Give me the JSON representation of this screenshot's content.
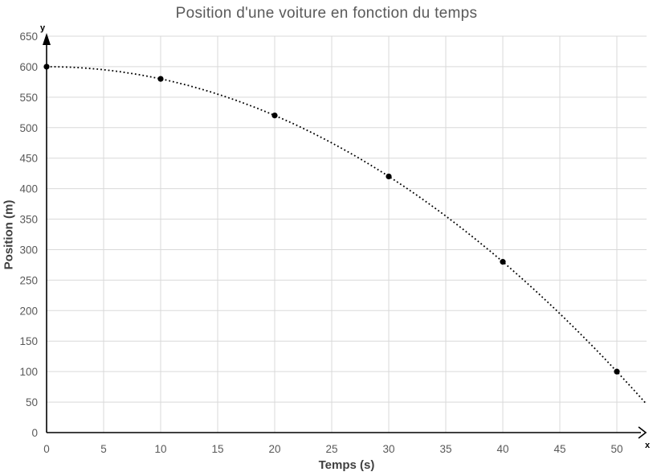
{
  "chart_data": {
    "type": "scatter",
    "title": "Position d'une voiture en fonction du temps",
    "xlabel": "Temps (s)",
    "ylabel": "Position (m)",
    "x_axis_letter": "x",
    "y_axis_letter": "y",
    "x": [
      0,
      10,
      20,
      30,
      40,
      50
    ],
    "y": [
      600,
      580,
      520,
      420,
      280,
      100
    ],
    "x_ticks": [
      0,
      5,
      10,
      15,
      20,
      25,
      30,
      35,
      40,
      45,
      50
    ],
    "y_ticks": [
      0,
      50,
      100,
      150,
      200,
      250,
      300,
      350,
      400,
      450,
      500,
      550,
      600,
      650
    ],
    "xlim": [
      0,
      52.5
    ],
    "ylim": [
      0,
      650
    ],
    "grid": true,
    "legend": "none",
    "trendline": {
      "style": "dotted",
      "equation": "y = 600 - 0.2*t^2",
      "a": -0.2,
      "b": 0,
      "c": 600,
      "t_min": 0,
      "t_max": 52.5
    },
    "colors": {
      "background": "#ffffff",
      "title": "#595959",
      "tick_labels": "#595959",
      "axis_titles": "#404040",
      "gridline": "#d9d9d9",
      "axis_line": "#000000",
      "point": "#000000",
      "curve": "#000000"
    }
  }
}
